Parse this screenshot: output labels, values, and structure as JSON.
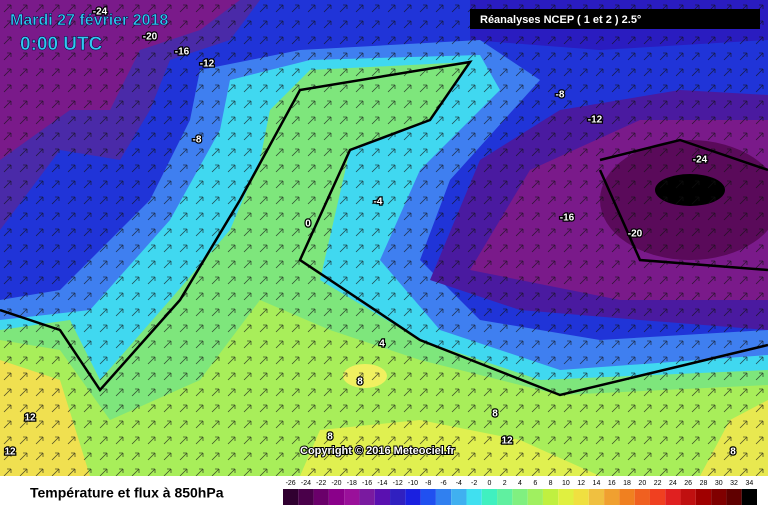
{
  "header": {
    "title": "Mardi 27 février 2018",
    "time": "0:00 UTC",
    "source": "Réanalyses NCEP ( 1 et 2 ) 2.5°",
    "copyright": "Copyright © 2016 Meteociel.fr"
  },
  "contour_labels": [
    -24,
    -20,
    -16,
    -12,
    -8,
    -8,
    -12,
    -24,
    -16,
    -20,
    -4,
    0,
    4,
    8,
    8,
    12,
    12,
    12,
    8,
    8
  ],
  "legend": {
    "title": "Température et flux à 850hPa",
    "ticks": [
      -26,
      -24,
      -22,
      -20,
      -18,
      -16,
      -14,
      -12,
      -10,
      -8,
      -6,
      -4,
      -2,
      0,
      2,
      4,
      6,
      8,
      10,
      12,
      14,
      16,
      18,
      20,
      22,
      24,
      26,
      28,
      30,
      32,
      34
    ],
    "colors": [
      "#300030",
      "#4a004a",
      "#6a006a",
      "#8a008a",
      "#9a109a",
      "#7a1aa0",
      "#5a10b0",
      "#3020c0",
      "#1a20e0",
      "#2050f0",
      "#3080f0",
      "#40b0f0",
      "#40e0f0",
      "#40f0c0",
      "#60f0a0",
      "#80f080",
      "#a0f060",
      "#c0f040",
      "#e0f040",
      "#f0e040",
      "#f0c040",
      "#f0a030",
      "#f08020",
      "#f06020",
      "#f04020",
      "#e02020",
      "#c01010",
      "#a00000",
      "#800000",
      "#600000",
      "#000000"
    ]
  }
}
